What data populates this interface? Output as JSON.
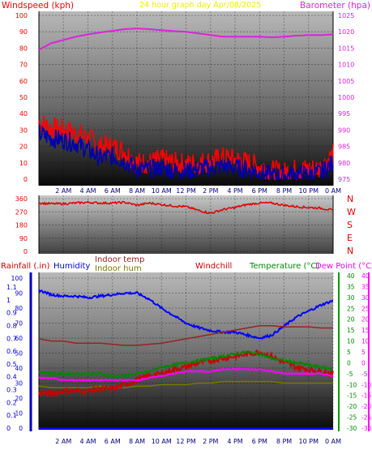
{
  "header": {
    "left_title": "Windspeed (kph)",
    "center_title": "24 hour graph day   Apr/08/2025",
    "right_title": "Barometer (hpa)"
  },
  "time_labels": [
    "2 AM",
    "4 AM",
    "6 AM",
    "8 AM",
    "10 AM",
    "12 PM",
    "2 PM",
    "4 PM",
    "6 PM",
    "8 PM",
    "10 PM",
    "0 AM"
  ],
  "wind_axis": {
    "label": "Windspeed (kph)",
    "ticks": [
      "0",
      "10",
      "20",
      "30",
      "40",
      "50",
      "60",
      "70",
      "80",
      "90",
      "100"
    ]
  },
  "baro_axis": {
    "label": "Barometer (hpa)",
    "ticks": [
      "975",
      "980",
      "985",
      "990",
      "995",
      "1000",
      "1005",
      "1010",
      "1015",
      "1020",
      "1025"
    ]
  },
  "dir_axis": {
    "ticks": [
      "0",
      "90",
      "180",
      "270",
      "360"
    ],
    "compass": [
      "N",
      "W",
      "S",
      "E",
      "N"
    ]
  },
  "bottom_headers": {
    "rain": "Rainfall (.in)",
    "humidity": "Humidity",
    "indoor_temp": "Indoor temp",
    "indoor_hum": "Indoor hum",
    "windchill": "Windchill",
    "temperature": "Temperature (°C)",
    "dewpoint": "Dew Point (°C)"
  },
  "rain_axis_ticks": [
    "0",
    "0.1",
    "0.2",
    "0.3",
    "0.4",
    "0.5",
    "0.6",
    "0.7",
    "0.8",
    "0.9",
    "1",
    "1.1"
  ],
  "hum_axis_ticks": [
    "0",
    "10",
    "20",
    "30",
    "40",
    "50",
    "60",
    "70",
    "80",
    "90",
    "100"
  ],
  "temp_axis_ticks": [
    "-30",
    "-25",
    "-20",
    "-15",
    "-10",
    "-5",
    "0",
    "5",
    "10",
    "15",
    "20",
    "25",
    "30",
    "35",
    "40"
  ],
  "colors": {
    "wind": "#ff0000",
    "gust": "#0000aa",
    "baro": "#dd22dd",
    "direction": "#dd0000",
    "humidity": "#0000ff",
    "indoor_temp": "#992222",
    "indoor_hum": "#777700",
    "windchill": "#cc0000",
    "temperature": "#008800",
    "dewpoint": "#ff00ff",
    "rain": "#0000ff",
    "title_center": "#ffff00"
  },
  "chart_data": [
    {
      "type": "line",
      "title": "24 hour graph day   Apr/08/2025",
      "xlabel": "",
      "ylabel": "Windspeed (kph)",
      "ylim": [
        0,
        100
      ],
      "y2label": "Barometer (hpa)",
      "y2lim": [
        975,
        1025
      ],
      "x": [
        0,
        1,
        2,
        3,
        4,
        5,
        6,
        7,
        8,
        9,
        10,
        11,
        12,
        13,
        14,
        15,
        16,
        17,
        18,
        19,
        20,
        21,
        22,
        23,
        24
      ],
      "series": [
        {
          "name": "Windspeed (kph)",
          "values": [
            35,
            31,
            30,
            28,
            25,
            20,
            20,
            17,
            10,
            10,
            12,
            10,
            9,
            10,
            11,
            13,
            12,
            10,
            8,
            5,
            4,
            6,
            6,
            7,
            15
          ]
        },
        {
          "name": "",
          "values": [
            28,
            25,
            24,
            22,
            18,
            13,
            14,
            11,
            6,
            6,
            7,
            5,
            5,
            6,
            7,
            8,
            7,
            6,
            4,
            2,
            2,
            3,
            3,
            4,
            10
          ]
        },
        {
          "name": "Barometer (hpa)",
          "axis": "right",
          "values": [
            1014.5,
            1016.5,
            1017.5,
            1018.5,
            1019.2,
            1019.8,
            1020.3,
            1020.8,
            1021,
            1020.8,
            1020.5,
            1020.2,
            1020,
            1019.5,
            1019,
            1018.5,
            1018.5,
            1018.5,
            1018.5,
            1018.3,
            1018.5,
            1018.8,
            1019,
            1019,
            1019.2
          ]
        }
      ]
    },
    {
      "type": "line",
      "title": "",
      "ylabel": "",
      "ylim": [
        0,
        360
      ],
      "x": [
        0,
        1,
        2,
        3,
        4,
        5,
        6,
        7,
        8,
        9,
        10,
        11,
        12,
        13,
        14,
        15,
        16,
        17,
        18,
        19,
        20,
        21,
        22,
        23,
        24
      ],
      "series": [
        {
          "name": "",
          "values": [
            330,
            325,
            325,
            330,
            335,
            330,
            330,
            335,
            315,
            330,
            320,
            310,
            305,
            280,
            260,
            285,
            300,
            320,
            330,
            330,
            315,
            305,
            300,
            295,
            280
          ]
        }
      ]
    },
    {
      "type": "line",
      "title": "",
      "x": [
        0,
        1,
        2,
        3,
        4,
        5,
        6,
        7,
        8,
        9,
        10,
        11,
        12,
        13,
        14,
        15,
        16,
        17,
        18,
        19,
        20,
        21,
        22,
        23,
        24
      ],
      "series": [
        {
          "name": "Humidity",
          "axis": "humidity",
          "ylim": [
            0,
            100
          ],
          "values": [
            92,
            89,
            88,
            88,
            87,
            88,
            89,
            90,
            90,
            86,
            80,
            75,
            70,
            67,
            65,
            64,
            64,
            62,
            60,
            62,
            68,
            74,
            78,
            82,
            85
          ]
        },
        {
          "name": "Indoor temp",
          "axis": "temperature",
          "ylim": [
            -30,
            40
          ],
          "values": [
            11,
            10,
            10,
            9,
            9,
            9,
            8.5,
            8,
            8,
            8.5,
            9,
            10,
            11,
            12,
            13,
            14,
            15,
            16,
            17,
            17,
            16.5,
            16.5,
            16.5,
            16,
            16
          ]
        },
        {
          "name": "Indoor hum",
          "axis": "humidity",
          "ylim": [
            0,
            100
          ],
          "values": [
            28,
            27,
            27,
            27,
            27,
            28,
            27,
            27,
            28,
            28,
            29,
            29,
            29,
            30,
            30,
            31,
            31,
            31,
            31,
            31,
            30,
            30,
            30,
            30,
            30
          ]
        },
        {
          "name": "Windchill",
          "axis": "temperature",
          "ylim": [
            -30,
            40
          ],
          "values": [
            -14,
            -14,
            -13,
            -13,
            -13,
            -12,
            -12,
            -10,
            -8,
            -6,
            -5,
            -3,
            -2,
            0,
            1,
            2,
            3,
            4,
            5,
            3,
            0,
            -2,
            -3,
            -4,
            -5
          ]
        },
        {
          "name": "Temperature (°C)",
          "axis": "temperature",
          "ylim": [
            -30,
            40
          ],
          "values": [
            -4,
            -5,
            -5,
            -5,
            -5,
            -5,
            -6,
            -6,
            -5,
            -4,
            -2,
            -1,
            0,
            1,
            2,
            3,
            4,
            5,
            4,
            2,
            1,
            0,
            -1,
            -2,
            -3
          ]
        },
        {
          "name": "Dew Point (°C)",
          "axis": "temperature",
          "ylim": [
            -30,
            40
          ],
          "values": [
            -7,
            -7,
            -8,
            -8,
            -8,
            -8,
            -8,
            -8,
            -8,
            -7,
            -6,
            -5,
            -4,
            -4,
            -4,
            -3,
            -3,
            -3,
            -3,
            -4,
            -5,
            -5,
            -5,
            -5,
            -6
          ]
        },
        {
          "name": "Rainfall (.in)",
          "axis": "rain",
          "ylim": [
            0,
            1.1
          ],
          "values": [
            0,
            0,
            0,
            0,
            0,
            0,
            0,
            0,
            0,
            0,
            0,
            0,
            0,
            0,
            0,
            0,
            0,
            0,
            0,
            0,
            0,
            0,
            0,
            0,
            0
          ]
        }
      ]
    }
  ]
}
